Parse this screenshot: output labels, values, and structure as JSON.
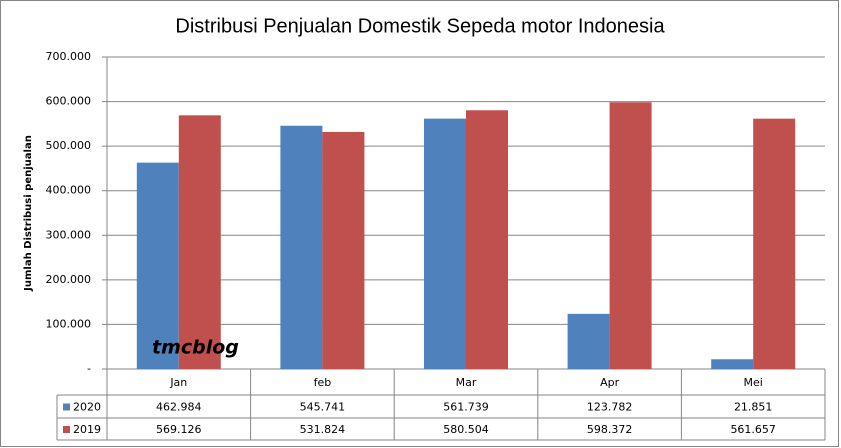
{
  "chart_data": {
    "type": "bar",
    "title": "Distribusi Penjualan Domestik Sepeda motor Indonesia",
    "y_label": "Jumlah Distribusi penjualan",
    "annotation": "tmcblog",
    "categories": [
      "Jan",
      "feb",
      "Mar",
      "Apr",
      "Mei"
    ],
    "series": [
      {
        "name": "2020",
        "color": "#4f81bd",
        "values": [
          462984,
          545741,
          561739,
          123782,
          21851
        ],
        "value_labels": [
          "462.984",
          "545.741",
          "561.739",
          "123.782",
          "21.851"
        ]
      },
      {
        "name": "2019",
        "color": "#c0504d",
        "values": [
          569126,
          531824,
          580504,
          598372,
          561657
        ],
        "value_labels": [
          "569.126",
          "531.824",
          "580.504",
          "598.372",
          "561.657"
        ]
      }
    ],
    "ylim": [
      0,
      700000
    ],
    "yticks": [
      {
        "value": 0,
        "label": "-"
      },
      {
        "value": 100000,
        "label": "100.000"
      },
      {
        "value": 200000,
        "label": "200.000"
      },
      {
        "value": 300000,
        "label": "300.000"
      },
      {
        "value": 400000,
        "label": "400.000"
      },
      {
        "value": 500000,
        "label": "500.000"
      },
      {
        "value": 600000,
        "label": "600.000"
      },
      {
        "value": 700000,
        "label": "700.000"
      }
    ],
    "grid": true
  }
}
